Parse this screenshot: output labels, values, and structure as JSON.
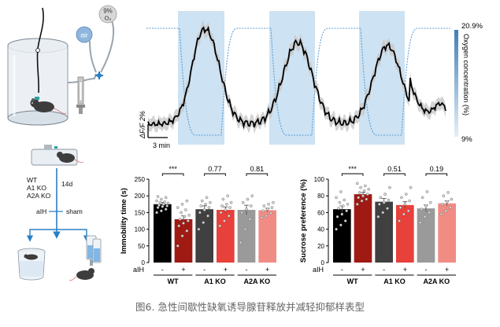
{
  "schematic": {
    "air_label": "air",
    "oxygen_label_line1": "9%",
    "oxygen_label_line2": "O₂",
    "groups": [
      "WT",
      "A1 KO",
      "A2A KO"
    ],
    "duration": "14d",
    "treatment": "aIH",
    "control": "sham"
  },
  "photometry": {
    "y_scale_label": "ΔF/F 2%",
    "x_scale_label": "3 min",
    "oxygen_high": "20.9%",
    "oxygen_low": "9%",
    "oxygen_axis_label": "Oxygen concentration (%)",
    "colors": {
      "hypoxia_band": "#bcd8ee",
      "oxygen_trace": "#5b9fd6",
      "signal": "#000000",
      "sem": "#c8c8c8"
    }
  },
  "charts": [
    {
      "id": "immobility",
      "type": "bar",
      "ylabel": "Immobility time (s)",
      "ylim": [
        0,
        250
      ],
      "yticks": [
        0,
        50,
        100,
        150,
        200,
        250
      ],
      "aih_row_label": "aIH",
      "aih_marks": [
        "-",
        "+",
        "-",
        "+",
        "-",
        "+"
      ],
      "groups": [
        "WT",
        "A1 KO",
        "A2A KO"
      ],
      "significance": [
        "***",
        "0.77",
        "0.81"
      ],
      "bars": [
        {
          "value": 175,
          "sem": 5,
          "color": "#000000",
          "points": [
            150,
            155,
            160,
            165,
            168,
            170,
            172,
            175,
            178,
            180,
            182,
            185,
            190,
            195,
            198
          ]
        },
        {
          "value": 130,
          "sem": 10,
          "color": "#a01a14",
          "points": [
            50,
            80,
            95,
            110,
            118,
            125,
            130,
            138,
            142,
            150,
            158,
            165,
            175,
            185
          ]
        },
        {
          "value": 160,
          "sem": 10,
          "color": "#404040",
          "points": [
            100,
            120,
            140,
            150,
            158,
            165,
            170,
            175,
            180,
            185,
            195
          ]
        },
        {
          "value": 158,
          "sem": 9,
          "color": "#e8403a",
          "points": [
            110,
            125,
            140,
            150,
            158,
            165,
            170,
            175,
            180,
            190,
            200
          ]
        },
        {
          "value": 158,
          "sem": 14,
          "color": "#9a9a9a",
          "points": [
            60,
            100,
            130,
            150,
            160,
            170,
            180,
            190,
            200
          ]
        },
        {
          "value": 157,
          "sem": 6,
          "color": "#f08c84",
          "points": [
            135,
            140,
            148,
            155,
            160,
            165,
            170,
            175,
            180
          ]
        }
      ]
    },
    {
      "id": "sucrose",
      "type": "bar",
      "ylabel": "Sucrose preference (%)",
      "ylim": [
        0,
        100
      ],
      "yticks": [
        0,
        20,
        40,
        60,
        80,
        100
      ],
      "aih_row_label": "aIH",
      "aih_marks": [
        "-",
        "+",
        "-",
        "+",
        "-",
        "+"
      ],
      "groups": [
        "WT",
        "A1 KO",
        "A2A KO"
      ],
      "significance": [
        "***",
        "0.51",
        "0.19"
      ],
      "bars": [
        {
          "value": 64,
          "sem": 4,
          "color": "#000000",
          "points": [
            40,
            45,
            50,
            55,
            58,
            62,
            65,
            68,
            70,
            72,
            75,
            78,
            85
          ]
        },
        {
          "value": 82,
          "sem": 2,
          "color": "#a01a14",
          "points": [
            70,
            74,
            76,
            78,
            80,
            82,
            84,
            86,
            88,
            90,
            92,
            95
          ]
        },
        {
          "value": 73,
          "sem": 4,
          "color": "#404040",
          "points": [
            55,
            60,
            65,
            70,
            72,
            75,
            78,
            82,
            90
          ]
        },
        {
          "value": 69,
          "sem": 4,
          "color": "#e8403a",
          "points": [
            50,
            58,
            62,
            66,
            70,
            74,
            78,
            82,
            90
          ]
        },
        {
          "value": 65,
          "sem": 4,
          "color": "#9a9a9a",
          "points": [
            48,
            55,
            60,
            64,
            68,
            72,
            78,
            85
          ]
        },
        {
          "value": 71,
          "sem": 3,
          "color": "#f08c84",
          "points": [
            58,
            62,
            66,
            70,
            73,
            76,
            80,
            84
          ]
        }
      ]
    }
  ],
  "caption": "图6. 急性间歇性缺氧诱导腺苷释放并减轻抑郁样表型"
}
